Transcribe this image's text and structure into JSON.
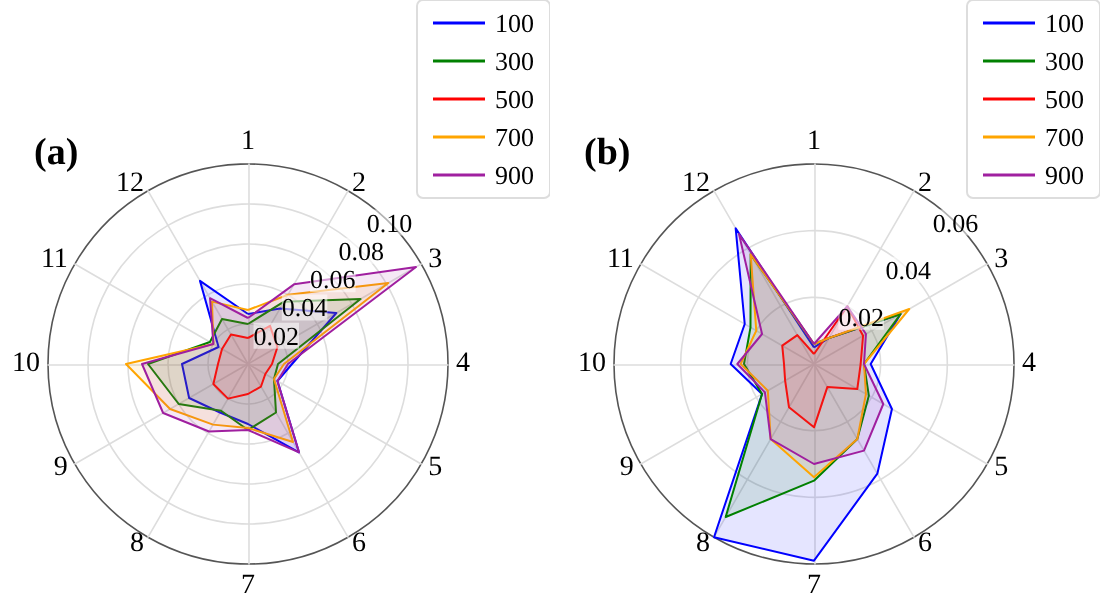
{
  "chart_data": [
    {
      "type": "radar",
      "title": "(a)",
      "categories": [
        "1",
        "2",
        "3",
        "4",
        "5",
        "6",
        "7",
        "8",
        "9",
        "10",
        "11",
        "12"
      ],
      "ylim": [
        0,
        0.1
      ],
      "yticks": [
        0.02,
        0.04,
        0.06,
        0.08,
        {
          "value": 0.1,
          "label": "0.10"
        }
      ],
      "grid": true,
      "legend": "top right",
      "marker": "none",
      "line_style": "solid",
      "series": [
        {
          "name": "100",
          "color": "#0000ff",
          "values": [
            0.025,
            0.032,
            0.051,
            0.022,
            0.017,
            0.051,
            0.03,
            0.028,
            0.034,
            0.033,
            0.017,
            0.048
          ]
        },
        {
          "name": "300",
          "color": "#008000",
          "values": [
            0.02,
            0.036,
            0.065,
            0.015,
            0.015,
            0.028,
            0.033,
            0.027,
            0.04,
            0.05,
            0.022,
            0.026
          ]
        },
        {
          "name": "500",
          "color": "#ff0000",
          "values": [
            0.013,
            0.022,
            0.017,
            0.012,
            0.01,
            0.013,
            0.015,
            0.02,
            0.02,
            0.015,
            0.015,
            0.017
          ]
        },
        {
          "name": "700",
          "color": "#ffa500",
          "values": [
            0.027,
            0.04,
            0.081,
            0.018,
            0.015,
            0.045,
            0.032,
            0.035,
            0.045,
            0.061,
            0.02,
            0.036
          ]
        },
        {
          "name": "900",
          "color": "#a020a0",
          "values": [
            0.023,
            0.046,
            0.097,
            0.02,
            0.017,
            0.051,
            0.033,
            0.039,
            0.049,
            0.053,
            0.02,
            0.038
          ]
        }
      ]
    },
    {
      "type": "radar",
      "title": "(b)",
      "categories": [
        "1",
        "2",
        "3",
        "4",
        "5",
        "6",
        "7",
        "8",
        "9",
        "10",
        "11",
        "12"
      ],
      "ylim": [
        0,
        0.06
      ],
      "yticks": [
        0.02,
        0.04,
        0.06
      ],
      "grid": true,
      "legend": "top right",
      "marker": "none",
      "line_style": "solid",
      "series": [
        {
          "name": "100",
          "color": "#0000ff",
          "values": [
            0.005,
            0.009,
            0.03,
            0.017,
            0.027,
            0.038,
            0.059,
            0.06,
            0.018,
            0.025,
            0.024,
            0.047
          ]
        },
        {
          "name": "300",
          "color": "#008000",
          "values": [
            0.006,
            0.009,
            0.03,
            0.015,
            0.019,
            0.026,
            0.035,
            0.053,
            0.018,
            0.021,
            0.022,
            0.038
          ]
        },
        {
          "name": "500",
          "color": "#ff0000",
          "values": [
            0.003,
            0.02,
            0.017,
            0.014,
            0.015,
            0.008,
            0.019,
            0.015,
            0.01,
            0.009,
            0.011,
            0.01
          ]
        },
        {
          "name": "700",
          "color": "#ffa500",
          "values": [
            0.006,
            0.009,
            0.033,
            0.015,
            0.018,
            0.026,
            0.034,
            0.026,
            0.016,
            0.022,
            0.02,
            0.038
          ]
        },
        {
          "name": "900",
          "color": "#a020a0",
          "values": [
            0.006,
            0.02,
            0.018,
            0.015,
            0.024,
            0.03,
            0.03,
            0.026,
            0.017,
            0.023,
            0.018,
            0.045
          ]
        }
      ]
    }
  ]
}
